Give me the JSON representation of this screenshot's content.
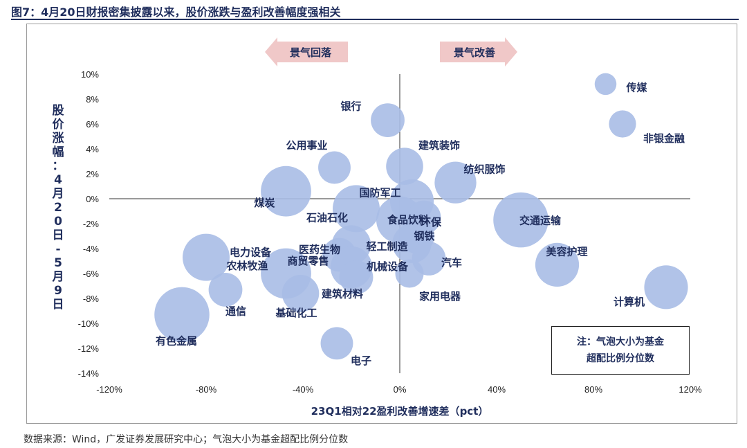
{
  "figure": {
    "title": "图7：4月20日财报密集披露以来，股价涨跌与盈利改善幅度强相关",
    "source": "数据来源：Wind，广发证券发展研究中心；气泡大小为基金超配比例分位数",
    "note_line1": "注：气泡大小为基金",
    "note_line2": "超配比例分位数",
    "arrow_left": "景气回落",
    "arrow_right": "景气改善",
    "colors": {
      "bubble": "#a9bde6",
      "text": "#1f2d5c",
      "arrow": "#f0c8c8"
    }
  },
  "chart_data": {
    "type": "scatter",
    "xlabel": "23Q1相对22盈利改善增速差（pct）",
    "ylabel": "股价涨幅：4月20日-5月9日",
    "xlim": [
      -120,
      120
    ],
    "ylim": [
      -14,
      10
    ],
    "x_ticks": [
      "-120%",
      "-80%",
      "-40%",
      "0%",
      "40%",
      "80%",
      "120%"
    ],
    "y_ticks": [
      "10%",
      "8%",
      "6%",
      "4%",
      "2%",
      "0%",
      "-2%",
      "-4%",
      "-6%",
      "-8%",
      "-10%",
      "-12%",
      "-14%"
    ],
    "points": [
      {
        "name": "传媒",
        "x": 85,
        "y": 9.2,
        "size": 0.12
      },
      {
        "name": "非银金融",
        "x": 92,
        "y": 6.0,
        "size": 0.2
      },
      {
        "name": "银行",
        "x": -5,
        "y": 6.3,
        "size": 0.3
      },
      {
        "name": "公用事业",
        "x": -27,
        "y": 2.5,
        "size": 0.28
      },
      {
        "name": "建筑装饰",
        "x": 2,
        "y": 2.6,
        "size": 0.35
      },
      {
        "name": "纺织服饰",
        "x": 23,
        "y": 1.3,
        "size": 0.42
      },
      {
        "name": "煤炭",
        "x": -47,
        "y": 0.6,
        "size": 0.55
      },
      {
        "name": "国防军工",
        "x": 5,
        "y": -0.2,
        "size": 0.45
      },
      {
        "name": "石油石化",
        "x": -18,
        "y": -0.8,
        "size": 0.5
      },
      {
        "name": "食品饮料",
        "x": 0,
        "y": -1.7,
        "size": 0.5
      },
      {
        "name": "环保",
        "x": 10,
        "y": -1.5,
        "size": 0.3
      },
      {
        "name": "交通运输",
        "x": 50,
        "y": -1.7,
        "size": 0.62
      },
      {
        "name": "钢铁",
        "x": 7,
        "y": -3.0,
        "size": 0.32
      },
      {
        "name": "医药生物",
        "x": -20,
        "y": -3.7,
        "size": 0.38
      },
      {
        "name": "轻工制造",
        "x": 5,
        "y": -3.6,
        "size": 0.38
      },
      {
        "name": "电力设备",
        "x": -80,
        "y": -4.7,
        "size": 0.5
      },
      {
        "name": "商贸零售",
        "x": -25,
        "y": -4.5,
        "size": 0.3
      },
      {
        "name": "汽车",
        "x": 12,
        "y": -4.8,
        "size": 0.3
      },
      {
        "name": "美容护理",
        "x": 65,
        "y": -5.3,
        "size": 0.45
      },
      {
        "name": "机械设备",
        "x": -20,
        "y": -5.5,
        "size": 0.42
      },
      {
        "name": "农林牧渔",
        "x": -47,
        "y": -6.0,
        "size": 0.55
      },
      {
        "name": "家用电器",
        "x": 4,
        "y": -6.0,
        "size": 0.22
      },
      {
        "name": "建筑材料",
        "x": -18,
        "y": -6.3,
        "size": 0.3
      },
      {
        "name": "通信",
        "x": -72,
        "y": -7.3,
        "size": 0.3
      },
      {
        "name": "计算机",
        "x": 110,
        "y": -7.1,
        "size": 0.45
      },
      {
        "name": "基础化工",
        "x": -41,
        "y": -7.6,
        "size": 0.35
      },
      {
        "name": "有色金属",
        "x": -90,
        "y": -9.3,
        "size": 0.62
      },
      {
        "name": "电子",
        "x": -26,
        "y": -11.6,
        "size": 0.28
      }
    ]
  }
}
